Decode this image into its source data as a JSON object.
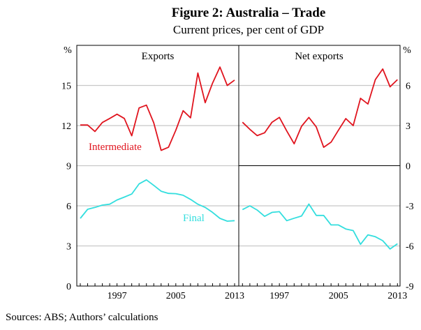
{
  "title": "Figure 2: Australia – Trade",
  "subtitle": "Current prices, per cent of GDP",
  "source": "Sources:  ABS; Authors’ calculations",
  "colors": {
    "intermediate": "#e0141e",
    "final": "#33dede",
    "grid": "#c8c8c8"
  },
  "chart_data": [
    {
      "type": "line",
      "panel_title": "Exports",
      "ylabel": "%",
      "ylim": [
        0,
        18
      ],
      "yticks": [
        0,
        3,
        6,
        9,
        12,
        15
      ],
      "xlim": [
        1992,
        2013
      ],
      "xticks": [
        1997,
        2005,
        2013
      ],
      "grid": true,
      "x": [
        1992,
        1993,
        1994,
        1995,
        1996,
        1997,
        1998,
        1999,
        2000,
        2001,
        2002,
        2003,
        2004,
        2005,
        2006,
        2007,
        2008,
        2009,
        2010,
        2011,
        2012,
        2013
      ],
      "series": [
        {
          "name": "Intermediate",
          "values": [
            12.04,
            12.04,
            11.56,
            12.23,
            12.53,
            12.85,
            12.53,
            11.24,
            13.32,
            13.53,
            12.21,
            10.15,
            10.38,
            11.65,
            13.11,
            12.58,
            15.93,
            13.71,
            15.17,
            16.38,
            15.0,
            15.4
          ]
        },
        {
          "name": "Final",
          "values": [
            5.06,
            5.74,
            5.88,
            6.05,
            6.12,
            6.44,
            6.65,
            6.88,
            7.64,
            7.94,
            7.53,
            7.09,
            6.93,
            6.91,
            6.79,
            6.48,
            6.12,
            5.88,
            5.51,
            5.06,
            4.85,
            4.89
          ]
        }
      ]
    },
    {
      "type": "line",
      "panel_title": "Net exports",
      "ylabel": "%",
      "ylim": [
        -9,
        9
      ],
      "yticks": [
        -9,
        -6,
        -3,
        0,
        3,
        6
      ],
      "xlim": [
        1992,
        2013
      ],
      "xticks": [
        1997,
        2005,
        2013
      ],
      "grid": true,
      "x": [
        1992,
        1993,
        1994,
        1995,
        1996,
        1997,
        1998,
        1999,
        2000,
        2001,
        2002,
        2003,
        2004,
        2005,
        2006,
        2007,
        2008,
        2009,
        2010,
        2011,
        2012,
        2013
      ],
      "series": [
        {
          "values": [
            3.25,
            2.72,
            2.25,
            2.46,
            3.25,
            3.61,
            2.6,
            1.64,
            2.95,
            3.61,
            2.9,
            1.38,
            1.76,
            2.65,
            3.52,
            3.0,
            5.04,
            4.61,
            6.44,
            7.23,
            5.9,
            6.44
          ]
        },
        {
          "values": [
            -3.28,
            -3.0,
            -3.32,
            -3.79,
            -3.49,
            -3.44,
            -4.11,
            -3.93,
            -3.76,
            -2.87,
            -3.72,
            -3.72,
            -4.43,
            -4.43,
            -4.73,
            -4.85,
            -5.88,
            -5.17,
            -5.31,
            -5.61,
            -6.23,
            -5.84
          ]
        }
      ]
    }
  ]
}
